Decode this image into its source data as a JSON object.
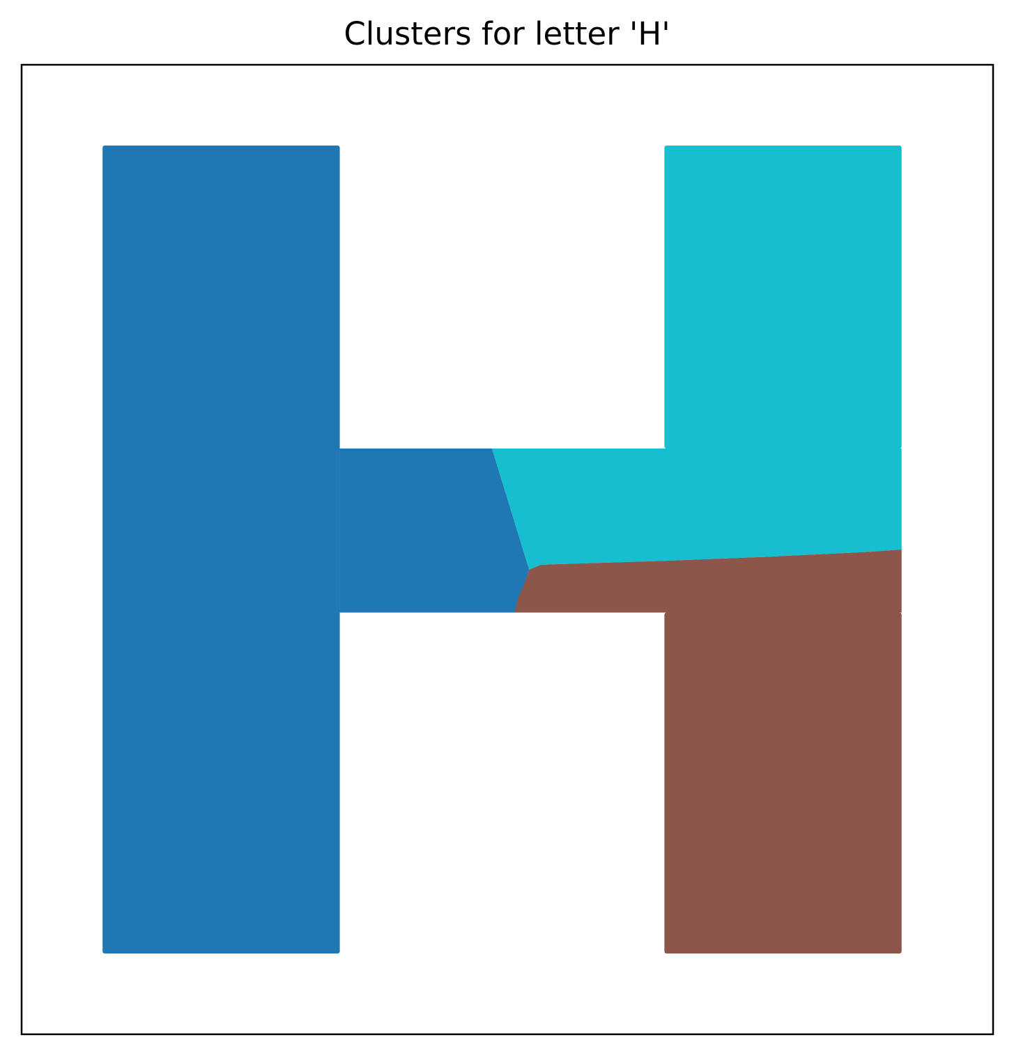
{
  "chart_data": {
    "type": "scatter",
    "title": "Clusters for letter 'H'",
    "xlabel": "",
    "ylabel": "",
    "axes_visible": false,
    "grid": false,
    "legend": "none",
    "xlim": [
      -0.1,
      1.1
    ],
    "ylim": [
      -0.1,
      1.1
    ],
    "clusters": [
      {
        "color": "#1f77b4",
        "regions": [
          {
            "shape": "rect",
            "x": [
              0.0,
              0.293
            ],
            "y": [
              0.0,
              1.0
            ]
          },
          {
            "shape": "polygon",
            "points": [
              [
                0.293,
                0.625
              ],
              [
                0.481,
                0.625
              ],
              [
                0.527,
                0.475
              ],
              [
                0.509,
                0.422
              ],
              [
                0.293,
                0.422
              ]
            ]
          }
        ]
      },
      {
        "color": "#17becf",
        "regions": [
          {
            "shape": "rect",
            "x": [
              0.694,
              0.987
            ],
            "y": [
              0.625,
              1.0
            ]
          },
          {
            "shape": "polygon",
            "points": [
              [
                0.481,
                0.625
              ],
              [
                0.694,
                0.625
              ],
              [
                0.987,
                0.625
              ],
              [
                0.987,
                0.5
              ],
              [
                0.944,
                0.497
              ],
              [
                0.82,
                0.491
              ],
              [
                0.694,
                0.486
              ],
              [
                0.566,
                0.482
              ],
              [
                0.541,
                0.481
              ],
              [
                0.527,
                0.475
              ]
            ]
          }
        ]
      },
      {
        "color": "#8c564b",
        "regions": [
          {
            "shape": "rect",
            "x": [
              0.694,
              0.987
            ],
            "y": [
              0.0,
              0.422
            ]
          },
          {
            "shape": "polygon",
            "points": [
              [
                0.509,
                0.422
              ],
              [
                0.694,
                0.422
              ],
              [
                0.987,
                0.422
              ],
              [
                0.987,
                0.5
              ],
              [
                0.944,
                0.497
              ],
              [
                0.82,
                0.491
              ],
              [
                0.694,
                0.486
              ],
              [
                0.566,
                0.482
              ],
              [
                0.541,
                0.481
              ],
              [
                0.527,
                0.475
              ],
              [
                0.52,
                0.455
              ],
              [
                0.513,
                0.44
              ]
            ]
          }
        ]
      }
    ]
  }
}
